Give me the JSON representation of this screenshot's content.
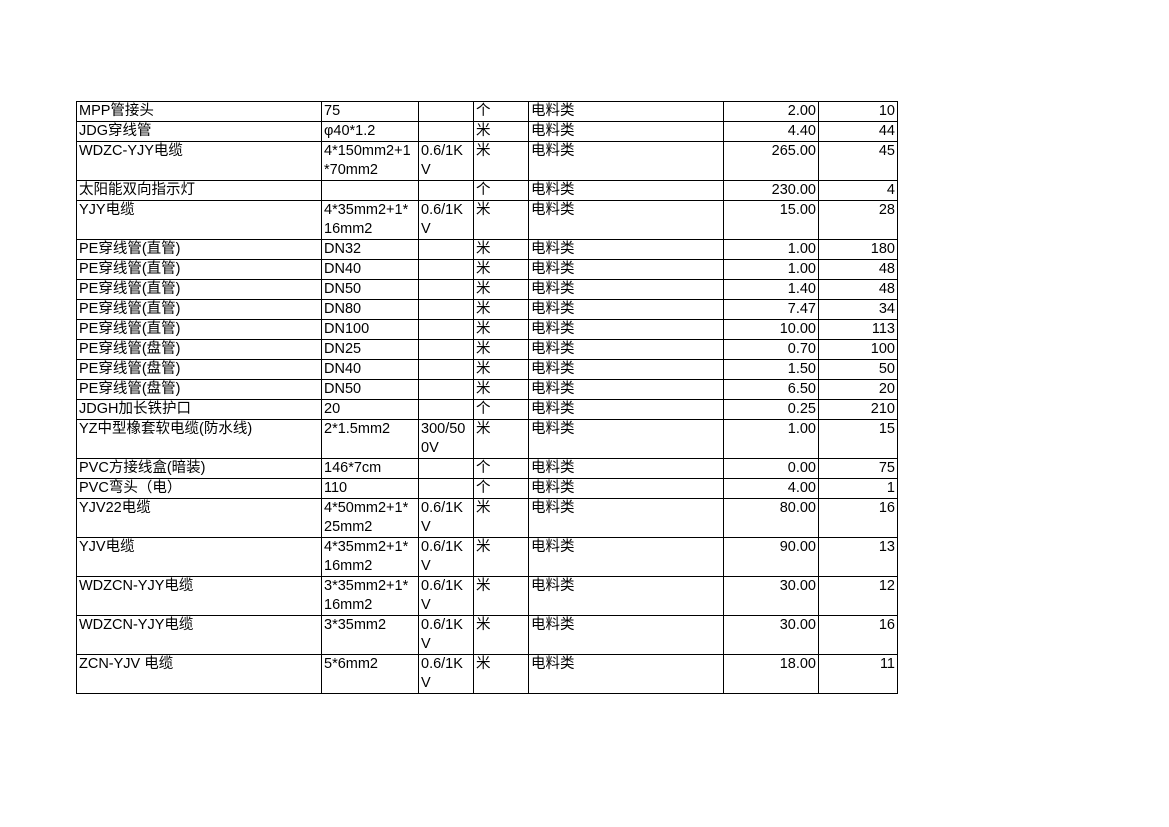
{
  "rows": [
    {
      "name": "MPP管接头",
      "spec": "75",
      "voltage": "",
      "unit": "个",
      "category": "电料类",
      "price": "2.00",
      "qty": "10"
    },
    {
      "name": "JDG穿线管",
      "spec": "φ40*1.2",
      "voltage": "",
      "unit": "米",
      "category": "电料类",
      "price": "4.40",
      "qty": "44"
    },
    {
      "name": "WDZC-YJY电缆",
      "spec": "4*150mm2+1*70mm2",
      "voltage": "0.6/1KV",
      "unit": "米",
      "category": "电料类",
      "price": "265.00",
      "qty": "45"
    },
    {
      "name": "太阳能双向指示灯",
      "spec": "",
      "voltage": "",
      "unit": "个",
      "category": "电料类",
      "price": "230.00",
      "qty": "4"
    },
    {
      "name": "YJY电缆",
      "spec": "4*35mm2+1*16mm2",
      "voltage": "0.6/1KV",
      "unit": "米",
      "category": "电料类",
      "price": "15.00",
      "qty": "28"
    },
    {
      "name": "PE穿线管(直管)",
      "spec": "DN32",
      "voltage": "",
      "unit": "米",
      "category": "电料类",
      "price": "1.00",
      "qty": "180"
    },
    {
      "name": "PE穿线管(直管)",
      "spec": "DN40",
      "voltage": "",
      "unit": "米",
      "category": "电料类",
      "price": "1.00",
      "qty": "48"
    },
    {
      "name": "PE穿线管(直管)",
      "spec": "DN50",
      "voltage": "",
      "unit": "米",
      "category": "电料类",
      "price": "1.40",
      "qty": "48"
    },
    {
      "name": "PE穿线管(直管)",
      "spec": "DN80",
      "voltage": "",
      "unit": "米",
      "category": "电料类",
      "price": "7.47",
      "qty": "34"
    },
    {
      "name": "PE穿线管(直管)",
      "spec": "DN100",
      "voltage": "",
      "unit": "米",
      "category": "电料类",
      "price": "10.00",
      "qty": "113"
    },
    {
      "name": "PE穿线管(盘管)",
      "spec": "DN25",
      "voltage": "",
      "unit": "米",
      "category": "电料类",
      "price": "0.70",
      "qty": "100"
    },
    {
      "name": "PE穿线管(盘管)",
      "spec": "DN40",
      "voltage": "",
      "unit": "米",
      "category": "电料类",
      "price": "1.50",
      "qty": "50"
    },
    {
      "name": "PE穿线管(盘管)",
      "spec": "DN50",
      "voltage": "",
      "unit": "米",
      "category": "电料类",
      "price": "6.50",
      "qty": "20"
    },
    {
      "name": "JDGH加长铁护口",
      "spec": "20",
      "voltage": "",
      "unit": "个",
      "category": "电料类",
      "price": "0.25",
      "qty": "210"
    },
    {
      "name": "YZ中型橡套软电缆(防水线)",
      "spec": "2*1.5mm2",
      "voltage": "300/500V",
      "unit": "米",
      "category": "电料类",
      "price": "1.00",
      "qty": "15"
    },
    {
      "name": "PVC方接线盒(暗装)",
      "spec": "146*7cm",
      "voltage": "",
      "unit": "个",
      "category": "电料类",
      "price": "0.00",
      "qty": "75"
    },
    {
      "name": "PVC弯头（电）",
      "spec": "110",
      "voltage": "",
      "unit": "个",
      "category": "电料类",
      "price": "4.00",
      "qty": "1"
    },
    {
      "name": "YJV22电缆",
      "spec": "4*50mm2+1*25mm2",
      "voltage": "0.6/1KV",
      "unit": "米",
      "category": "电料类",
      "price": "80.00",
      "qty": "16"
    },
    {
      "name": "YJV电缆",
      "spec": "4*35mm2+1*16mm2",
      "voltage": "0.6/1KV",
      "unit": "米",
      "category": "电料类",
      "price": "90.00",
      "qty": "13"
    },
    {
      "name": "WDZCN-YJY电缆",
      "spec": "3*35mm2+1*16mm2",
      "voltage": "0.6/1KV",
      "unit": "米",
      "category": "电料类",
      "price": "30.00",
      "qty": "12"
    },
    {
      "name": "WDZCN-YJY电缆",
      "spec": "3*35mm2",
      "voltage": "0.6/1KV",
      "unit": "米",
      "category": "电料类",
      "price": "30.00",
      "qty": "16"
    },
    {
      "name": "ZCN-YJV 电缆",
      "spec": "5*6mm2",
      "voltage": "0.6/1KV",
      "unit": "米",
      "category": "电料类",
      "price": "18.00",
      "qty": "11"
    }
  ]
}
